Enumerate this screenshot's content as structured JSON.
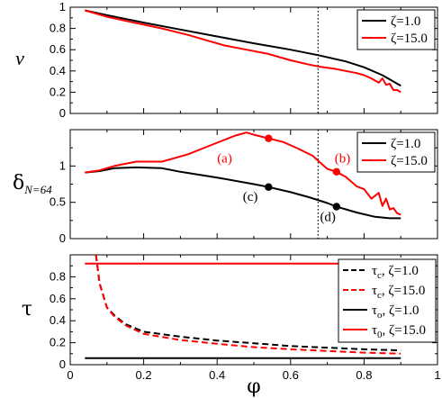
{
  "chart_data": [
    {
      "type": "line",
      "ylabel": "v",
      "xlim": [
        0,
        1
      ],
      "ylim": [
        0,
        1
      ],
      "yticks": [
        "0",
        "0.2",
        "0.4",
        "0.6",
        "0.8",
        "1"
      ],
      "vline_x": 0.675,
      "legend_position": "top-right",
      "series": [
        {
          "name": "ζ=1.0",
          "color": "#000000",
          "dashed": false,
          "x": [
            0.04,
            0.1,
            0.2,
            0.3,
            0.4,
            0.5,
            0.6,
            0.68,
            0.75,
            0.8,
            0.85,
            0.9
          ],
          "y": [
            0.97,
            0.925,
            0.855,
            0.79,
            0.725,
            0.66,
            0.6,
            0.545,
            0.49,
            0.435,
            0.36,
            0.26
          ]
        },
        {
          "name": "ζ=15.0",
          "color": "#ff0000",
          "dashed": false,
          "x": [
            0.04,
            0.1,
            0.18,
            0.25,
            0.32,
            0.38,
            0.42,
            0.48,
            0.54,
            0.6,
            0.65,
            0.68,
            0.72,
            0.75,
            0.78,
            0.8,
            0.82,
            0.84,
            0.85,
            0.86,
            0.87,
            0.88,
            0.89,
            0.9
          ],
          "y": [
            0.97,
            0.91,
            0.85,
            0.8,
            0.74,
            0.68,
            0.64,
            0.6,
            0.56,
            0.5,
            0.46,
            0.44,
            0.42,
            0.4,
            0.38,
            0.36,
            0.33,
            0.29,
            0.33,
            0.27,
            0.28,
            0.22,
            0.22,
            0.2
          ]
        }
      ]
    },
    {
      "type": "line",
      "ylabel_main": "δ",
      "ylabel_sub": "N=64",
      "xlim": [
        0,
        1
      ],
      "ylim": [
        0,
        1.5
      ],
      "yticks": [
        "0",
        "0.5",
        "1"
      ],
      "ytick_values": [
        0,
        0.5,
        1
      ],
      "vline_x": 0.675,
      "legend_position": "top-right",
      "series": [
        {
          "name": "ζ=1.0",
          "color": "#000000",
          "dashed": false,
          "x": [
            0.04,
            0.08,
            0.12,
            0.18,
            0.25,
            0.3,
            0.4,
            0.5,
            0.54,
            0.6,
            0.65,
            0.7,
            0.725,
            0.78,
            0.83,
            0.87,
            0.9
          ],
          "y": [
            0.91,
            0.93,
            0.97,
            0.98,
            0.97,
            0.92,
            0.84,
            0.75,
            0.71,
            0.64,
            0.57,
            0.49,
            0.44,
            0.36,
            0.3,
            0.28,
            0.28
          ]
        },
        {
          "name": "ζ=15.0",
          "color": "#ff0000",
          "dashed": false,
          "x": [
            0.04,
            0.08,
            0.12,
            0.18,
            0.25,
            0.32,
            0.4,
            0.45,
            0.48,
            0.5,
            0.54,
            0.58,
            0.62,
            0.66,
            0.7,
            0.725,
            0.75,
            0.78,
            0.8,
            0.82,
            0.84,
            0.85,
            0.86,
            0.87,
            0.88,
            0.89,
            0.9
          ],
          "y": [
            0.91,
            0.94,
            1.0,
            1.06,
            1.06,
            1.16,
            1.32,
            1.42,
            1.46,
            1.43,
            1.38,
            1.33,
            1.24,
            1.14,
            0.96,
            0.92,
            0.85,
            0.72,
            0.68,
            0.55,
            0.63,
            0.45,
            0.55,
            0.4,
            0.42,
            0.35,
            0.33
          ]
        }
      ],
      "markers": [
        {
          "x": 0.54,
          "y": 1.38,
          "color": "#ff0000"
        },
        {
          "x": 0.725,
          "y": 0.92,
          "color": "#ff0000"
        },
        {
          "x": 0.54,
          "y": 0.71,
          "color": "#000000"
        },
        {
          "x": 0.725,
          "y": 0.44,
          "color": "#000000"
        }
      ],
      "annotations": [
        {
          "text": "(a)",
          "x": 0.4,
          "y": 1.05,
          "color": "#ff0000"
        },
        {
          "text": "(b)",
          "x": 0.72,
          "y": 1.05,
          "color": "#ff0000"
        },
        {
          "text": "(c)",
          "x": 0.47,
          "y": 0.52,
          "color": "#000000"
        },
        {
          "text": "(d)",
          "x": 0.68,
          "y": 0.24,
          "color": "#000000"
        }
      ]
    },
    {
      "type": "line",
      "xlabel": "φ",
      "ylabel": "τ",
      "xlim": [
        0,
        1
      ],
      "ylim": [
        0,
        1
      ],
      "yticks": [
        "0",
        "0.2",
        "0.4",
        "0.6",
        "0.8"
      ],
      "ytick_values": [
        0,
        0.2,
        0.4,
        0.6,
        0.8
      ],
      "xticks": [
        "0",
        "0.2",
        "0.4",
        "0.6",
        "0.8",
        "1"
      ],
      "xtick_values": [
        0,
        0.2,
        0.4,
        0.6,
        0.8,
        1
      ],
      "legend_position": "top-right",
      "series": [
        {
          "name": "τc, ζ=1.0",
          "name_parts": [
            "τ",
            "c",
            ", ζ=1.0"
          ],
          "color": "#000000",
          "dashed": true,
          "x": [
            0.07,
            0.08,
            0.1,
            0.12,
            0.15,
            0.2,
            0.3,
            0.4,
            0.5,
            0.6,
            0.7,
            0.8,
            0.9
          ],
          "y": [
            1.0,
            0.74,
            0.52,
            0.45,
            0.37,
            0.3,
            0.255,
            0.22,
            0.195,
            0.17,
            0.155,
            0.14,
            0.13
          ]
        },
        {
          "name": "τc, ζ=15.0",
          "name_parts": [
            "τ",
            "c",
            ", ζ=15.0"
          ],
          "color": "#ff0000",
          "dashed": true,
          "x": [
            0.07,
            0.08,
            0.1,
            0.12,
            0.15,
            0.2,
            0.3,
            0.4,
            0.5,
            0.6,
            0.7,
            0.8,
            0.9
          ],
          "y": [
            1.0,
            0.74,
            0.52,
            0.44,
            0.36,
            0.28,
            0.225,
            0.19,
            0.16,
            0.14,
            0.125,
            0.11,
            0.1
          ]
        },
        {
          "name": "τo, ζ=1.0",
          "name_parts": [
            "τ",
            "o",
            ", ζ=1.0"
          ],
          "color": "#000000",
          "dashed": false,
          "x": [
            0.04,
            0.9
          ],
          "y": [
            0.06,
            0.06
          ]
        },
        {
          "name": "τ0, ζ=15.0",
          "name_parts": [
            "τ",
            "0",
            ", ζ=15.0"
          ],
          "color": "#ff0000",
          "dashed": false,
          "x": [
            0.04,
            0.9
          ],
          "y": [
            0.92,
            0.92
          ]
        }
      ]
    }
  ]
}
